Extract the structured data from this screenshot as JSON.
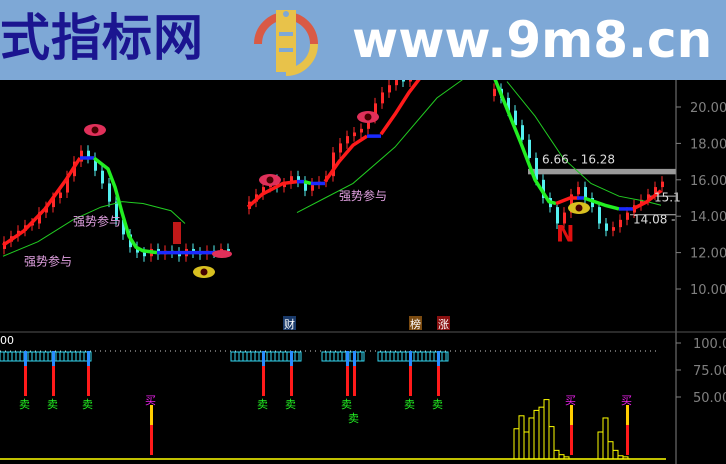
{
  "banner": {
    "site_name": "式指标网",
    "url": "www.9m8.cn",
    "logo_text": "www.9m8.cn"
  },
  "colors": {
    "up": "#ff2a2a",
    "down": "#54f0f0",
    "trend_up": "#ff1a1a",
    "trend_flat": "#1a2aff",
    "trend_down": "#22ee22",
    "ma": "#22cc22",
    "axis": "#808080",
    "signal_box": "#33d6f0",
    "histogram": "#ffff00",
    "sell_text": "#22ee22",
    "buy_text": "#ee22ee"
  },
  "chart_data": [
    {
      "type": "bar",
      "panel": "price",
      "ylim": [
        8.5,
        21.5
      ],
      "y_ticks": [
        "20.00",
        "18.00",
        "16.00",
        "14.00",
        "12.00",
        "10.00"
      ],
      "closes": [
        12.6,
        12.9,
        13.2,
        13.5,
        13.6,
        14.2,
        14.5,
        15.0,
        15.3,
        16.2,
        17.0,
        17.6,
        17.2,
        16.5,
        15.8,
        14.8,
        13.8,
        13.0,
        12.3,
        12.0,
        11.8,
        12.2,
        11.9,
        12.1,
        12.0,
        11.8,
        12.2,
        12.0,
        11.9,
        12.1,
        12.0,
        12.2,
        12.1,
        null,
        null,
        14.8,
        15.2,
        15.6,
        16.0,
        15.6,
        15.8,
        16.2,
        15.9,
        15.4,
        15.8,
        15.9,
        16.2,
        17.5,
        18.0,
        18.4,
        18.6,
        18.8,
        19.4,
        20.2,
        20.8,
        21.2,
        21.6,
        21.4,
        21.8,
        22.0,
        22.2,
        null,
        null,
        null,
        null,
        null,
        null,
        null,
        null,
        null,
        21.0,
        20.5,
        19.8,
        19.0,
        18.2,
        17.2,
        16.0,
        15.0,
        14.5,
        13.6,
        14.2,
        15.2,
        15.6,
        15.0,
        14.5,
        13.6,
        13.2,
        13.4,
        13.8,
        14.2,
        14.6,
        14.9,
        15.2,
        15.6,
        15.9
      ],
      "trend_line": [
        {
          "state": "up",
          "points": [
            [
              0,
              12.4
            ],
            [
              3,
              13.2
            ],
            [
              6,
              14.4
            ],
            [
              9,
              16.0
            ],
            [
              11,
              17.2
            ]
          ]
        },
        {
          "state": "flat",
          "points": [
            [
              11,
              17.2
            ],
            [
              13,
              17.2
            ]
          ]
        },
        {
          "state": "down",
          "points": [
            [
              13,
              17.2
            ],
            [
              15,
              16.6
            ],
            [
              16,
              15.6
            ],
            [
              17,
              14.2
            ],
            [
              18,
              12.9
            ],
            [
              19,
              12.3
            ],
            [
              20,
              12.1
            ],
            [
              22,
              12.0
            ]
          ]
        },
        {
          "state": "flat",
          "points": [
            [
              22,
              12.0
            ],
            [
              31,
              12.0
            ]
          ]
        },
        {
          "state": "up",
          "points": [
            [
              35,
              14.5
            ],
            [
              37,
              15.2
            ],
            [
              40,
              15.8
            ],
            [
              42,
              15.9
            ]
          ]
        },
        {
          "state": "flat",
          "points": [
            [
              42,
              15.9
            ],
            [
              43,
              15.9
            ]
          ]
        },
        {
          "state": "down",
          "points": [
            [
              43,
              15.9
            ],
            [
              44,
              15.8
            ]
          ]
        },
        {
          "state": "flat",
          "points": [
            [
              44,
              15.8
            ],
            [
              46,
              15.8
            ]
          ]
        },
        {
          "state": "up",
          "points": [
            [
              46,
              15.9
            ],
            [
              48,
              17.0
            ],
            [
              50,
              17.9
            ],
            [
              52,
              18.4
            ]
          ]
        },
        {
          "state": "flat",
          "points": [
            [
              52,
              18.4
            ],
            [
              54,
              18.4
            ]
          ]
        },
        {
          "state": "up",
          "points": [
            [
              54,
              18.5
            ],
            [
              56,
              19.6
            ],
            [
              58,
              20.8
            ],
            [
              60,
              21.8
            ]
          ]
        },
        {
          "state": "down",
          "points": [
            [
              70,
              21.8
            ],
            [
              72,
              19.9
            ],
            [
              74,
              18.0
            ],
            [
              76,
              16.0
            ],
            [
              78,
              14.8
            ],
            [
              79,
              14.7
            ]
          ]
        },
        {
          "state": "up",
          "points": [
            [
              79,
              14.7
            ],
            [
              81,
              15.0
            ],
            [
              82,
              15.0
            ]
          ]
        },
        {
          "state": "flat",
          "points": [
            [
              82,
              15.0
            ],
            [
              83,
              15.0
            ]
          ]
        },
        {
          "state": "down",
          "points": [
            [
              83,
              15.0
            ],
            [
              86,
              14.6
            ],
            [
              88,
              14.4
            ]
          ]
        },
        {
          "state": "flat",
          "points": [
            [
              88,
              14.4
            ],
            [
              90,
              14.4
            ]
          ]
        },
        {
          "state": "up",
          "points": [
            [
              90,
              14.4
            ],
            [
              92,
              14.8
            ],
            [
              94,
              15.4
            ]
          ]
        }
      ],
      "moving_average": [
        [
          [
            0,
            11.8
          ],
          [
            5,
            12.6
          ],
          [
            10,
            13.8
          ],
          [
            14,
            14.5
          ],
          [
            17,
            14.8
          ],
          [
            20,
            14.7
          ],
          [
            24,
            14.3
          ],
          [
            26,
            13.6
          ]
        ],
        [
          [
            42,
            14.2
          ],
          [
            46,
            15.0
          ],
          [
            50,
            15.8
          ],
          [
            56,
            17.8
          ],
          [
            62,
            20.5
          ],
          [
            66,
            21.6
          ]
        ],
        [
          [
            72,
            21.4
          ],
          [
            76,
            19.5
          ],
          [
            80,
            17.2
          ],
          [
            84,
            15.8
          ],
          [
            88,
            15.1
          ],
          [
            92,
            14.8
          ],
          [
            94,
            14.6
          ]
        ]
      ],
      "annotations": [
        {
          "text": "强势参与",
          "bar": 3,
          "price": 11.3
        },
        {
          "text": "强势参与",
          "bar": 10,
          "price": 13.5
        },
        {
          "text": "强势参与",
          "bar": 48,
          "price": 14.9
        },
        {
          "text": "6.66 - 16.28",
          "bar": 77,
          "price": 16.9
        },
        {
          "text": "15.1",
          "bar": 93,
          "price": 14.8
        },
        {
          "text": "14.08 -",
          "bar": 90,
          "price": 13.6
        },
        {
          "text": "N",
          "bar": 79,
          "price": 12.6
        }
      ],
      "price_band": {
        "from": 16.3,
        "to": 16.6
      },
      "levels": [
        15.1,
        14.08
      ]
    },
    {
      "type": "bar",
      "panel": "indicator",
      "ylim": [
        0,
        110
      ],
      "y_ticks": [
        "100.0",
        "75.00",
        "50.00"
      ],
      "top_left_label": "00",
      "event_tags": [
        {
          "text": "财",
          "bar": 42,
          "color": "#1a3a6a"
        },
        {
          "text": "榜",
          "bar": 60,
          "color": "#7a4a10"
        },
        {
          "text": "涨",
          "bar": 64,
          "color": "#8a1010"
        }
      ],
      "signal_boxes": [
        [
          0,
          12
        ],
        [
          33,
          42
        ],
        [
          46,
          51
        ],
        [
          54,
          63
        ]
      ],
      "sell_signals": {
        "label": "卖",
        "bars": [
          3,
          7,
          12,
          37,
          41,
          49,
          50,
          58,
          62
        ]
      },
      "buy_signals": {
        "label": "买",
        "bars": [
          21,
          81,
          89
        ]
      },
      "histogram": [
        {
          "start_bar": 73,
          "values": [
            28,
            40,
            25,
            38,
            45,
            48,
            55,
            30,
            8,
            4,
            2
          ]
        },
        {
          "start_bar": 85,
          "values": [
            25,
            38,
            16,
            8,
            3,
            2
          ]
        }
      ]
    }
  ]
}
